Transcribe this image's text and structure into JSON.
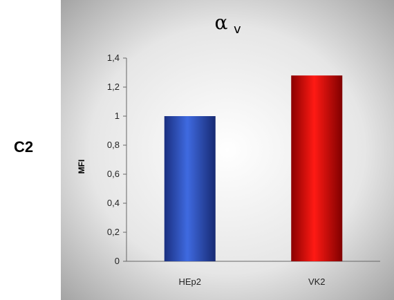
{
  "panel_label": "C2",
  "colors": {
    "background_center": "#ffffff",
    "background_edge": "#9a9a9a",
    "axis": "#666666"
  },
  "chart_data": {
    "type": "bar",
    "title_symbol": "α",
    "title_subscript": "v",
    "ylabel": "MFI",
    "xlabel": "",
    "categories": [
      "HEp2",
      "VK2"
    ],
    "values": [
      1.0,
      1.28
    ],
    "bar_colors": [
      "#2b4fbf",
      "#e8110f"
    ],
    "ylim": [
      0,
      1.4
    ],
    "yticks": [
      "0",
      "0,2",
      "0,4",
      "0,6",
      "0,8",
      "1",
      "1,2",
      "1,4"
    ],
    "grid": false,
    "legend": "none"
  }
}
